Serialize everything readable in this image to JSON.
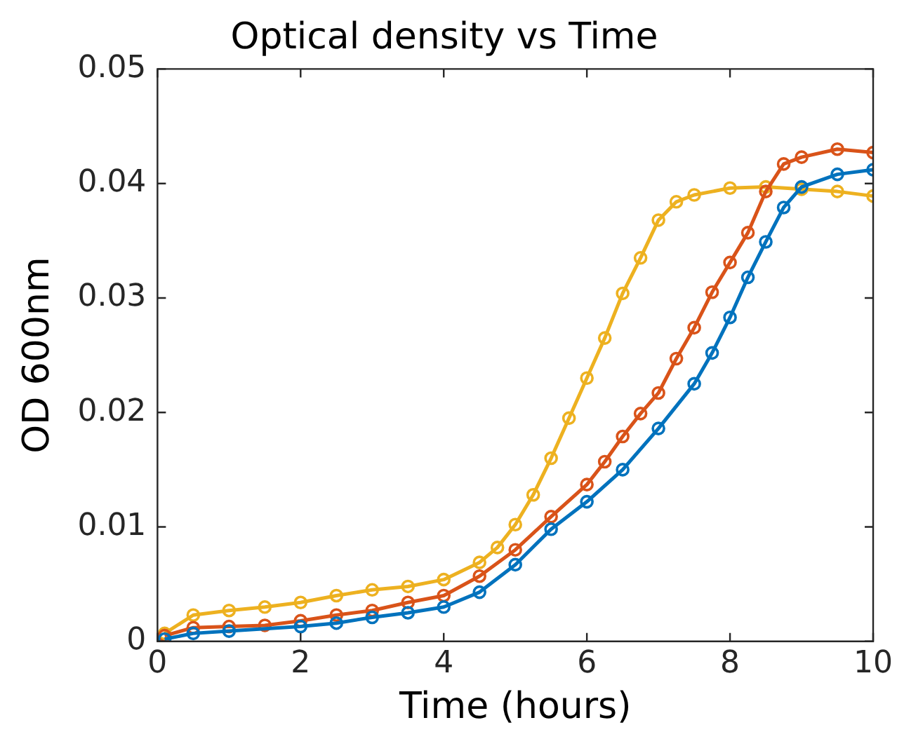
{
  "chart_data": {
    "type": "line",
    "title": "Optical density vs Time",
    "xlabel": "Time (hours)",
    "ylabel": "OD 600nm",
    "xlim": [
      0,
      10
    ],
    "xticks": [
      0,
      2,
      4,
      6,
      8,
      10
    ],
    "ylim": [
      0,
      0.05
    ],
    "yticks": [
      0,
      0.01,
      0.02,
      0.03,
      0.04,
      0.05
    ],
    "grid": false,
    "legend": false,
    "marker": "circle",
    "line_style": "solid",
    "series": [
      {
        "color": "#0072bd",
        "x": [
          0.1,
          0.5,
          1,
          2,
          2.5,
          3,
          3.5,
          4,
          4.5,
          5,
          5.5,
          6,
          6.5,
          7,
          7.5,
          7.75,
          8,
          8.25,
          8.5,
          8.75,
          9,
          9.5,
          10
        ],
        "values": [
          0.0002,
          0.0007,
          0.0009,
          0.0013,
          0.0016,
          0.0021,
          0.0025,
          0.003,
          0.0043,
          0.0067,
          0.0098,
          0.0122,
          0.015,
          0.0186,
          0.0225,
          0.0252,
          0.0283,
          0.0318,
          0.0349,
          0.0379,
          0.0397,
          0.0408,
          0.0412
        ]
      },
      {
        "color": "#d95319",
        "x": [
          0.1,
          0.5,
          1,
          1.5,
          2,
          2.5,
          3,
          3.5,
          4,
          4.5,
          5,
          5.5,
          6,
          6.25,
          6.5,
          6.75,
          7,
          7.25,
          7.5,
          7.75,
          8,
          8.25,
          8.5,
          8.75,
          9,
          9.5,
          10
        ],
        "values": [
          0.0005,
          0.0012,
          0.0013,
          0.0014,
          0.0018,
          0.0023,
          0.0027,
          0.0034,
          0.004,
          0.0057,
          0.008,
          0.0109,
          0.0137,
          0.0157,
          0.0179,
          0.0199,
          0.0217,
          0.0247,
          0.0274,
          0.0305,
          0.0331,
          0.0357,
          0.0393,
          0.0417,
          0.0423,
          0.043,
          0.0427
        ]
      },
      {
        "color": "#edb120",
        "x": [
          0.1,
          0.5,
          1,
          1.5,
          2,
          2.5,
          3,
          3.5,
          4,
          4.5,
          4.75,
          5,
          5.25,
          5.5,
          5.75,
          6,
          6.25,
          6.5,
          6.75,
          7,
          7.25,
          7.5,
          8,
          8.5,
          9,
          9.5,
          10
        ],
        "values": [
          0.0007,
          0.0023,
          0.0027,
          0.003,
          0.0034,
          0.004,
          0.0045,
          0.0048,
          0.0054,
          0.0069,
          0.0082,
          0.0102,
          0.0128,
          0.016,
          0.0195,
          0.023,
          0.0265,
          0.0304,
          0.0335,
          0.0368,
          0.0384,
          0.039,
          0.0396,
          0.0397,
          0.0395,
          0.0393,
          0.0389
        ]
      }
    ]
  }
}
